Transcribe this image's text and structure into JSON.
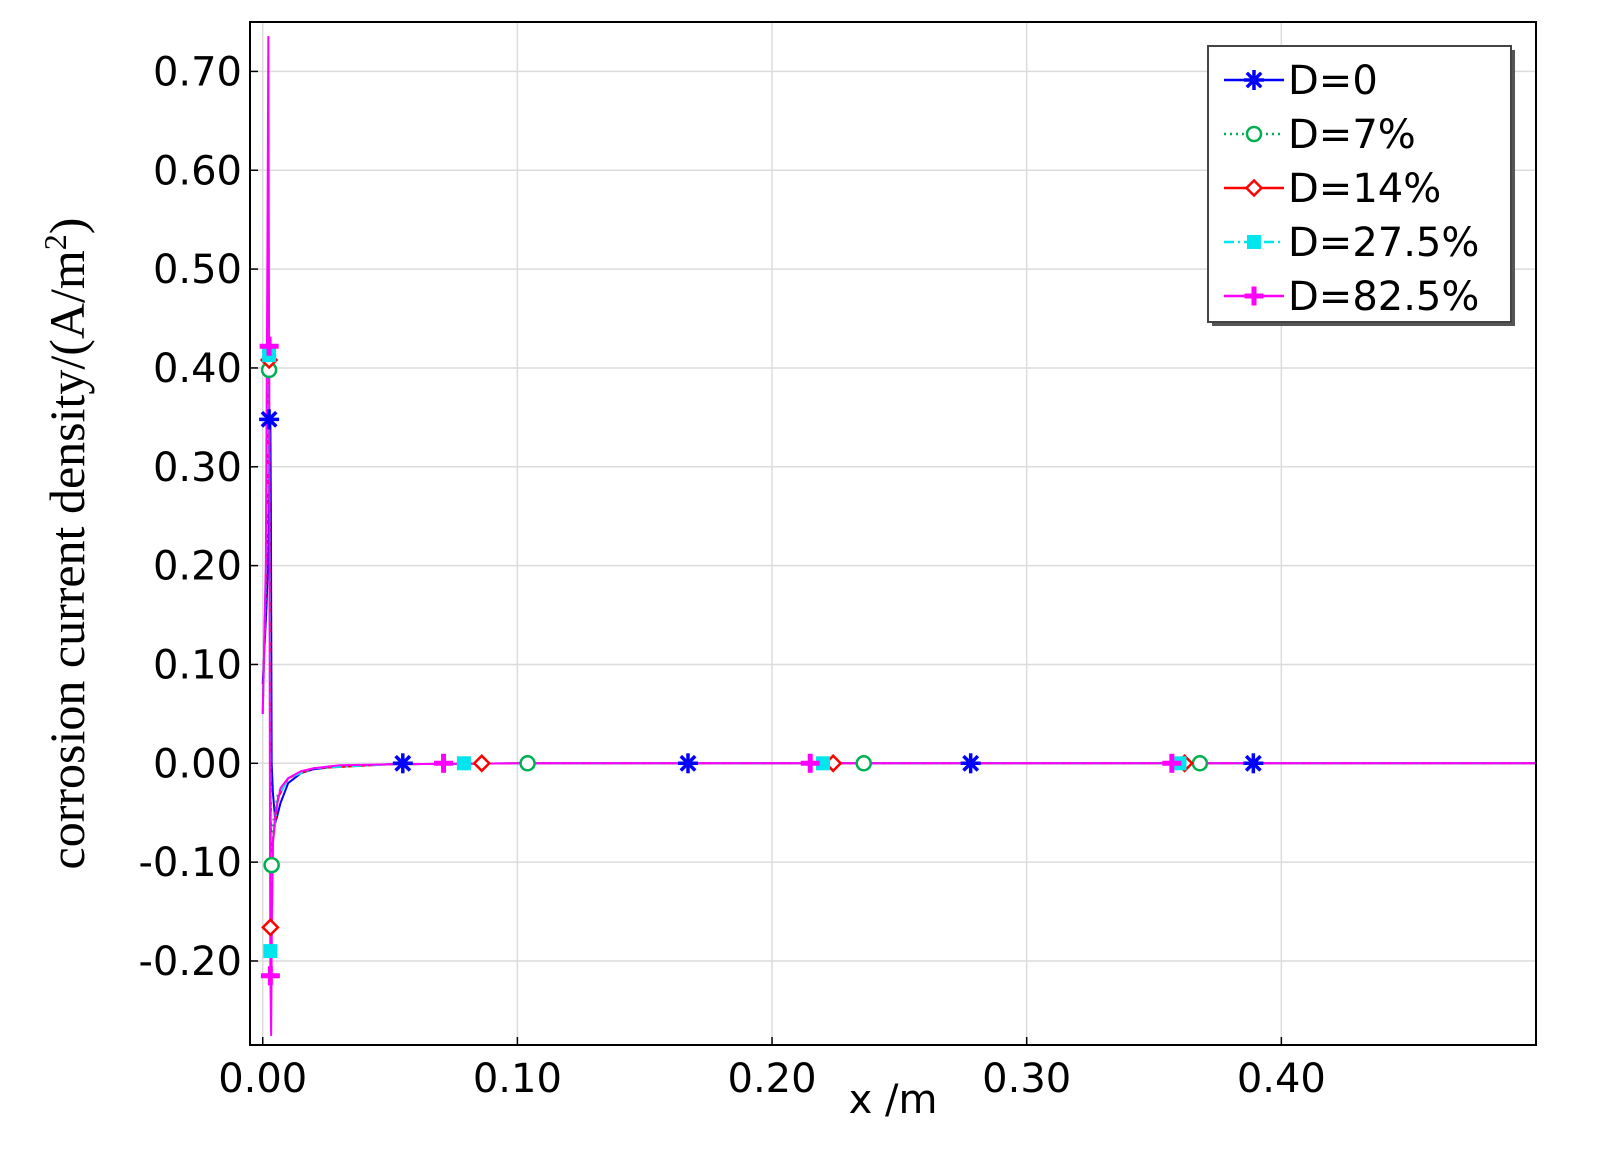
{
  "chart_data": {
    "type": "line",
    "title": "",
    "xlabel": "x /m",
    "ylabel": "corrosion current density/(A/m",
    "ylabel_sup": "2",
    "ylabel_end": ")",
    "xlim": [
      -0.005,
      0.5
    ],
    "ylim": [
      -0.285,
      0.75
    ],
    "xticks": [
      0.0,
      0.1,
      0.2,
      0.3,
      0.4
    ],
    "xtick_labels": [
      "0.00",
      "0.10",
      "0.20",
      "0.30",
      "0.40"
    ],
    "yticks": [
      -0.2,
      -0.1,
      0.0,
      0.1,
      0.2,
      0.3,
      0.4,
      0.5,
      0.6,
      0.7
    ],
    "ytick_labels": [
      "-0.20",
      "-0.10",
      "0.00",
      "0.10",
      "0.20",
      "0.30",
      "0.40",
      "0.50",
      "0.60",
      "0.70"
    ],
    "grid": true,
    "legend_position": "top-right",
    "series": [
      {
        "name": "D=0",
        "color": "#0000ff",
        "line_style": "solid",
        "marker": "asterisk",
        "x": [
          0.0,
          0.0015,
          0.002,
          0.0025,
          0.0028,
          0.003,
          0.0032,
          0.0035,
          0.004,
          0.005,
          0.007,
          0.01,
          0.015,
          0.02,
          0.03,
          0.05,
          0.1,
          0.2,
          0.3,
          0.4,
          0.5
        ],
        "y": [
          0.08,
          0.16,
          0.2,
          0.28,
          0.34,
          0.35,
          0.26,
          0.0,
          -0.03,
          -0.06,
          -0.04,
          -0.02,
          -0.01,
          -0.006,
          -0.003,
          -0.001,
          0.0,
          0.0,
          0.0,
          0.0,
          0.0
        ],
        "marker_points": [
          {
            "x": 0.0025,
            "y": 0.348
          },
          {
            "x": 0.055,
            "y": 0.0
          },
          {
            "x": 0.167,
            "y": 0.0
          },
          {
            "x": 0.278,
            "y": 0.0
          },
          {
            "x": 0.389,
            "y": 0.0
          }
        ]
      },
      {
        "name": "D=7%",
        "color": "#00b050",
        "line_style": "dotted",
        "marker": "circle",
        "x": [
          0.0,
          0.0015,
          0.0025,
          0.003,
          0.0035,
          0.004,
          0.006,
          0.01,
          0.02,
          0.05,
          0.1,
          0.2,
          0.3,
          0.4,
          0.5
        ],
        "y": [
          0.05,
          0.2,
          0.4,
          0.0,
          -0.1,
          -0.06,
          -0.03,
          -0.015,
          -0.005,
          -0.001,
          0.0,
          0.0,
          0.0,
          0.0,
          0.0
        ],
        "marker_points": [
          {
            "x": 0.0025,
            "y": 0.398
          },
          {
            "x": 0.0035,
            "y": -0.103
          },
          {
            "x": 0.104,
            "y": 0.0
          },
          {
            "x": 0.236,
            "y": 0.0
          },
          {
            "x": 0.368,
            "y": 0.0
          }
        ]
      },
      {
        "name": "D=14%",
        "color": "#ff0000",
        "line_style": "solid",
        "marker": "diamond",
        "x": [
          0.0,
          0.0015,
          0.0025,
          0.003,
          0.0035,
          0.004,
          0.006,
          0.01,
          0.02,
          0.05,
          0.1,
          0.2,
          0.3,
          0.4,
          0.5
        ],
        "y": [
          0.05,
          0.22,
          0.41,
          0.0,
          -0.166,
          -0.08,
          -0.035,
          -0.015,
          -0.005,
          -0.001,
          0.0,
          0.0,
          0.0,
          0.0,
          0.0
        ],
        "marker_points": [
          {
            "x": 0.0025,
            "y": 0.408
          },
          {
            "x": 0.003,
            "y": -0.166
          },
          {
            "x": 0.086,
            "y": 0.0
          },
          {
            "x": 0.224,
            "y": 0.0
          },
          {
            "x": 0.362,
            "y": 0.0
          }
        ]
      },
      {
        "name": "D=27.5%",
        "color": "#00e5ee",
        "line_style": "dashdot",
        "marker": "square",
        "x": [
          0.0,
          0.0015,
          0.0025,
          0.003,
          0.0035,
          0.004,
          0.006,
          0.01,
          0.02,
          0.05,
          0.1,
          0.2,
          0.3,
          0.4,
          0.5
        ],
        "y": [
          0.05,
          0.22,
          0.415,
          0.0,
          -0.19,
          -0.08,
          -0.035,
          -0.015,
          -0.005,
          -0.001,
          0.0,
          0.0,
          0.0,
          0.0,
          0.0
        ],
        "marker_points": [
          {
            "x": 0.0025,
            "y": 0.413
          },
          {
            "x": 0.003,
            "y": -0.19
          },
          {
            "x": 0.079,
            "y": 0.0
          },
          {
            "x": 0.22,
            "y": 0.0
          },
          {
            "x": 0.36,
            "y": 0.0
          }
        ]
      },
      {
        "name": "D=82.5%",
        "color": "#ff00ff",
        "line_style": "solid",
        "marker": "plus",
        "x": [
          0.0,
          0.0012,
          0.0018,
          0.0022,
          0.0025,
          0.0028,
          0.003,
          0.0033,
          0.0036,
          0.004,
          0.005,
          0.007,
          0.01,
          0.015,
          0.02,
          0.03,
          0.05,
          0.1,
          0.2,
          0.3,
          0.4,
          0.5
        ],
        "y": [
          0.05,
          0.2,
          0.5,
          0.735,
          0.42,
          0.0,
          -0.215,
          -0.275,
          -0.15,
          -0.08,
          -0.05,
          -0.025,
          -0.015,
          -0.008,
          -0.005,
          -0.002,
          -0.001,
          0.0,
          0.0,
          0.0,
          0.0,
          0.0
        ],
        "marker_points": [
          {
            "x": 0.0025,
            "y": 0.422
          },
          {
            "x": 0.003,
            "y": -0.215
          },
          {
            "x": 0.071,
            "y": 0.0
          },
          {
            "x": 0.215,
            "y": 0.0
          },
          {
            "x": 0.357,
            "y": 0.0
          }
        ]
      }
    ]
  }
}
